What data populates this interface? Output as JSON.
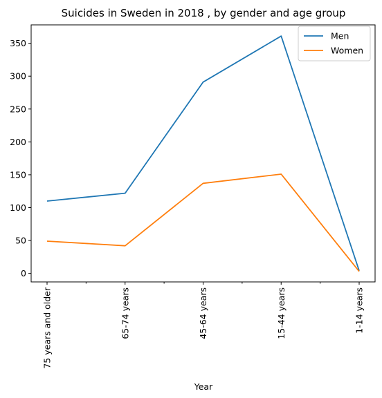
{
  "chart_data": {
    "type": "line",
    "title": "Suicides in Sweden in 2018 , by gender and age group",
    "xlabel": "Year",
    "ylabel": "",
    "categories": [
      "75 years and older",
      "65-74 years",
      "45-64 years",
      "15-44 years",
      "1-14 years"
    ],
    "series": [
      {
        "name": "Men",
        "color": "#1f77b4",
        "values": [
          110,
          122,
          291,
          361,
          4
        ]
      },
      {
        "name": "Women",
        "color": "#ff7f0e",
        "values": [
          49,
          42,
          137,
          151,
          3
        ]
      }
    ],
    "ylim": [
      -13,
      378
    ],
    "yticks": [
      0,
      50,
      100,
      150,
      200,
      250,
      300,
      350
    ],
    "minor_xticks": true,
    "grid": false,
    "legend": "top-right"
  }
}
